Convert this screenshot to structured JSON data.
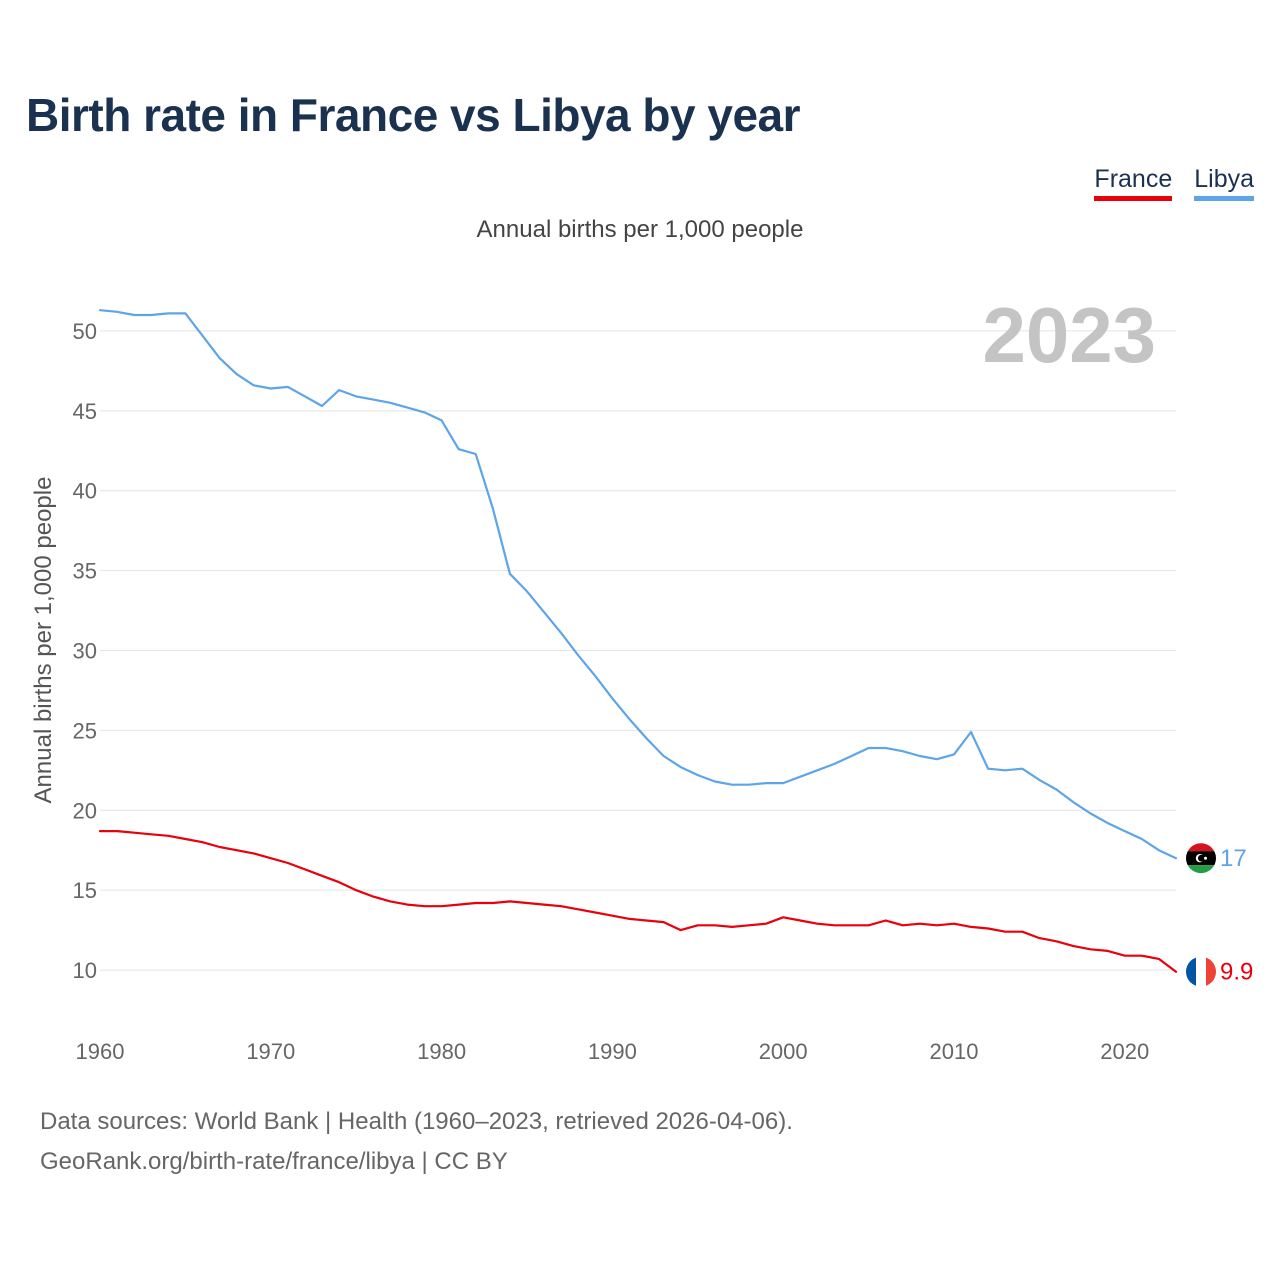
{
  "page": {
    "title": "Birth rate in France vs Libya by year",
    "subtitle": "Annual births per 1,000 people",
    "source_line1": "Data sources: World Bank | Health (1960–2023, retrieved 2026-04-06).",
    "source_line2": "GeoRank.org/birth-rate/france/libya | CC BY"
  },
  "legend": [
    {
      "label": "France",
      "color": "#e8000b"
    },
    {
      "label": "Libya",
      "color": "#5da5e8"
    }
  ],
  "chart_data": {
    "type": "line",
    "title": "Birth rate in France vs Libya by year",
    "subtitle": "Annual births per 1,000 people",
    "xlabel": "",
    "ylabel": "Annual births per 1,000 people",
    "year_label": "2023",
    "xlim": [
      1960,
      2023
    ],
    "ylim": [
      7,
      53
    ],
    "xticks": [
      1960,
      1970,
      1980,
      1990,
      2000,
      2010,
      2020
    ],
    "yticks": [
      10,
      15,
      20,
      25,
      30,
      35,
      40,
      45,
      50
    ],
    "grid": true,
    "legend_position": "top-right",
    "x": [
      1960,
      1961,
      1962,
      1963,
      1964,
      1965,
      1966,
      1967,
      1968,
      1969,
      1970,
      1971,
      1972,
      1973,
      1974,
      1975,
      1976,
      1977,
      1978,
      1979,
      1980,
      1981,
      1982,
      1983,
      1984,
      1985,
      1986,
      1987,
      1988,
      1989,
      1990,
      1991,
      1992,
      1993,
      1994,
      1995,
      1996,
      1997,
      1998,
      1999,
      2000,
      2001,
      2002,
      2003,
      2004,
      2005,
      2006,
      2007,
      2008,
      2009,
      2010,
      2011,
      2012,
      2013,
      2014,
      2015,
      2016,
      2017,
      2018,
      2019,
      2020,
      2021,
      2022,
      2023
    ],
    "series": [
      {
        "name": "Libya",
        "color": "#5da5e8",
        "end_label": "17",
        "values": [
          51.3,
          51.2,
          51.0,
          51.0,
          51.1,
          51.1,
          49.7,
          48.3,
          47.3,
          46.6,
          46.4,
          46.5,
          45.9,
          45.3,
          46.3,
          45.9,
          45.7,
          45.5,
          45.2,
          44.9,
          44.4,
          42.6,
          42.3,
          38.9,
          34.8,
          33.7,
          32.4,
          31.1,
          29.7,
          28.4,
          27.0,
          25.7,
          24.5,
          23.4,
          22.7,
          22.2,
          21.8,
          21.6,
          21.6,
          21.7,
          21.7,
          22.1,
          22.5,
          22.9,
          23.4,
          23.9,
          23.9,
          23.7,
          23.4,
          23.2,
          23.5,
          24.9,
          22.6,
          22.5,
          22.6,
          21.9,
          21.3,
          20.5,
          19.8,
          19.2,
          18.7,
          18.2,
          17.5,
          17.0
        ]
      },
      {
        "name": "France",
        "color": "#e8000b",
        "end_label": "9.9",
        "values": [
          18.7,
          18.7,
          18.6,
          18.5,
          18.4,
          18.2,
          18.0,
          17.7,
          17.5,
          17.3,
          17.0,
          16.7,
          16.3,
          15.9,
          15.5,
          15.0,
          14.6,
          14.3,
          14.1,
          14.0,
          14.0,
          14.1,
          14.2,
          14.2,
          14.3,
          14.2,
          14.1,
          14.0,
          13.8,
          13.6,
          13.4,
          13.2,
          13.1,
          13.0,
          12.5,
          12.8,
          12.8,
          12.7,
          12.8,
          12.9,
          13.3,
          13.1,
          12.9,
          12.8,
          12.8,
          12.8,
          13.1,
          12.8,
          12.9,
          12.8,
          12.9,
          12.7,
          12.6,
          12.4,
          12.4,
          12.0,
          11.8,
          11.5,
          11.3,
          11.2,
          10.9,
          10.9,
          10.7,
          9.9
        ]
      }
    ]
  }
}
